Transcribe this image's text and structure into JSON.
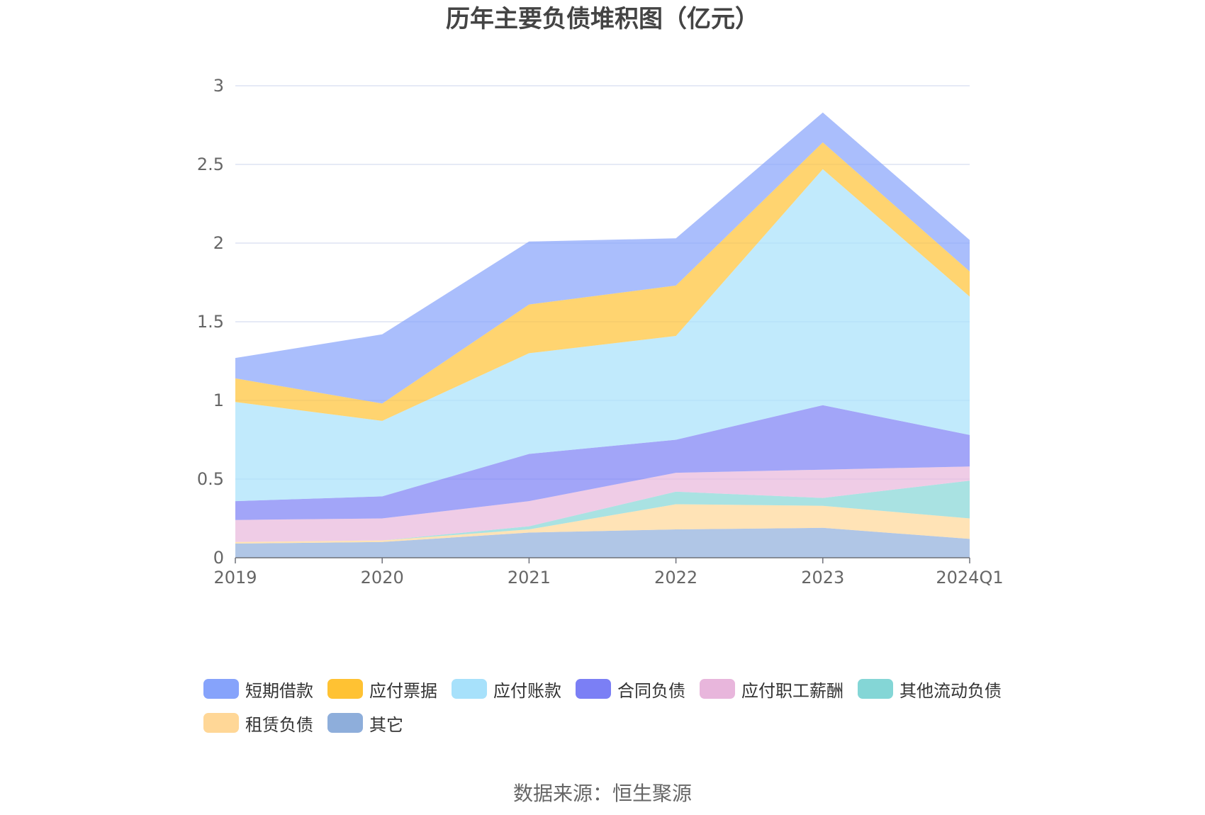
{
  "chart_data": {
    "type": "area",
    "stacked": true,
    "title": "历年主要负债堆积图（亿元）",
    "categories": [
      "2019",
      "2020",
      "2021",
      "2022",
      "2023",
      "2024Q1"
    ],
    "ylim": [
      0,
      3
    ],
    "yticks": [
      "0",
      "0.5",
      "1",
      "1.5",
      "2",
      "2.5",
      "3"
    ],
    "grid": true,
    "legend_position": "bottom",
    "series": [
      {
        "name": "其它",
        "color": "#8eaedb",
        "values": [
          0.09,
          0.1,
          0.16,
          0.18,
          0.19,
          0.12
        ]
      },
      {
        "name": "租赁负债",
        "color": "#ffd797",
        "values": [
          0.01,
          0.01,
          0.02,
          0.16,
          0.14,
          0.13
        ]
      },
      {
        "name": "其他流动负债",
        "color": "#84d6d6",
        "values": [
          0.0,
          0.0,
          0.02,
          0.08,
          0.05,
          0.24
        ]
      },
      {
        "name": "应付职工薪酬",
        "color": "#e8b6dc",
        "values": [
          0.14,
          0.14,
          0.16,
          0.12,
          0.18,
          0.09
        ]
      },
      {
        "name": "合同负债",
        "color": "#7b7ff5",
        "values": [
          0.12,
          0.14,
          0.3,
          0.21,
          0.41,
          0.2
        ]
      },
      {
        "name": "应付账款",
        "color": "#a7e1fb",
        "values": [
          0.63,
          0.48,
          0.64,
          0.66,
          1.5,
          0.88
        ]
      },
      {
        "name": "应付票据",
        "color": "#ffc233",
        "values": [
          0.15,
          0.11,
          0.31,
          0.32,
          0.17,
          0.16
        ]
      },
      {
        "name": "短期借款",
        "color": "#86a3fb",
        "values": [
          0.13,
          0.44,
          0.4,
          0.3,
          0.19,
          0.2
        ]
      }
    ]
  },
  "legend_order": [
    "短期借款",
    "应付票据",
    "应付账款",
    "合同负债",
    "应付职工薪酬",
    "其他流动负债",
    "租赁负债",
    "其它"
  ],
  "footer": {
    "source": "数据来源：恒生聚源"
  }
}
